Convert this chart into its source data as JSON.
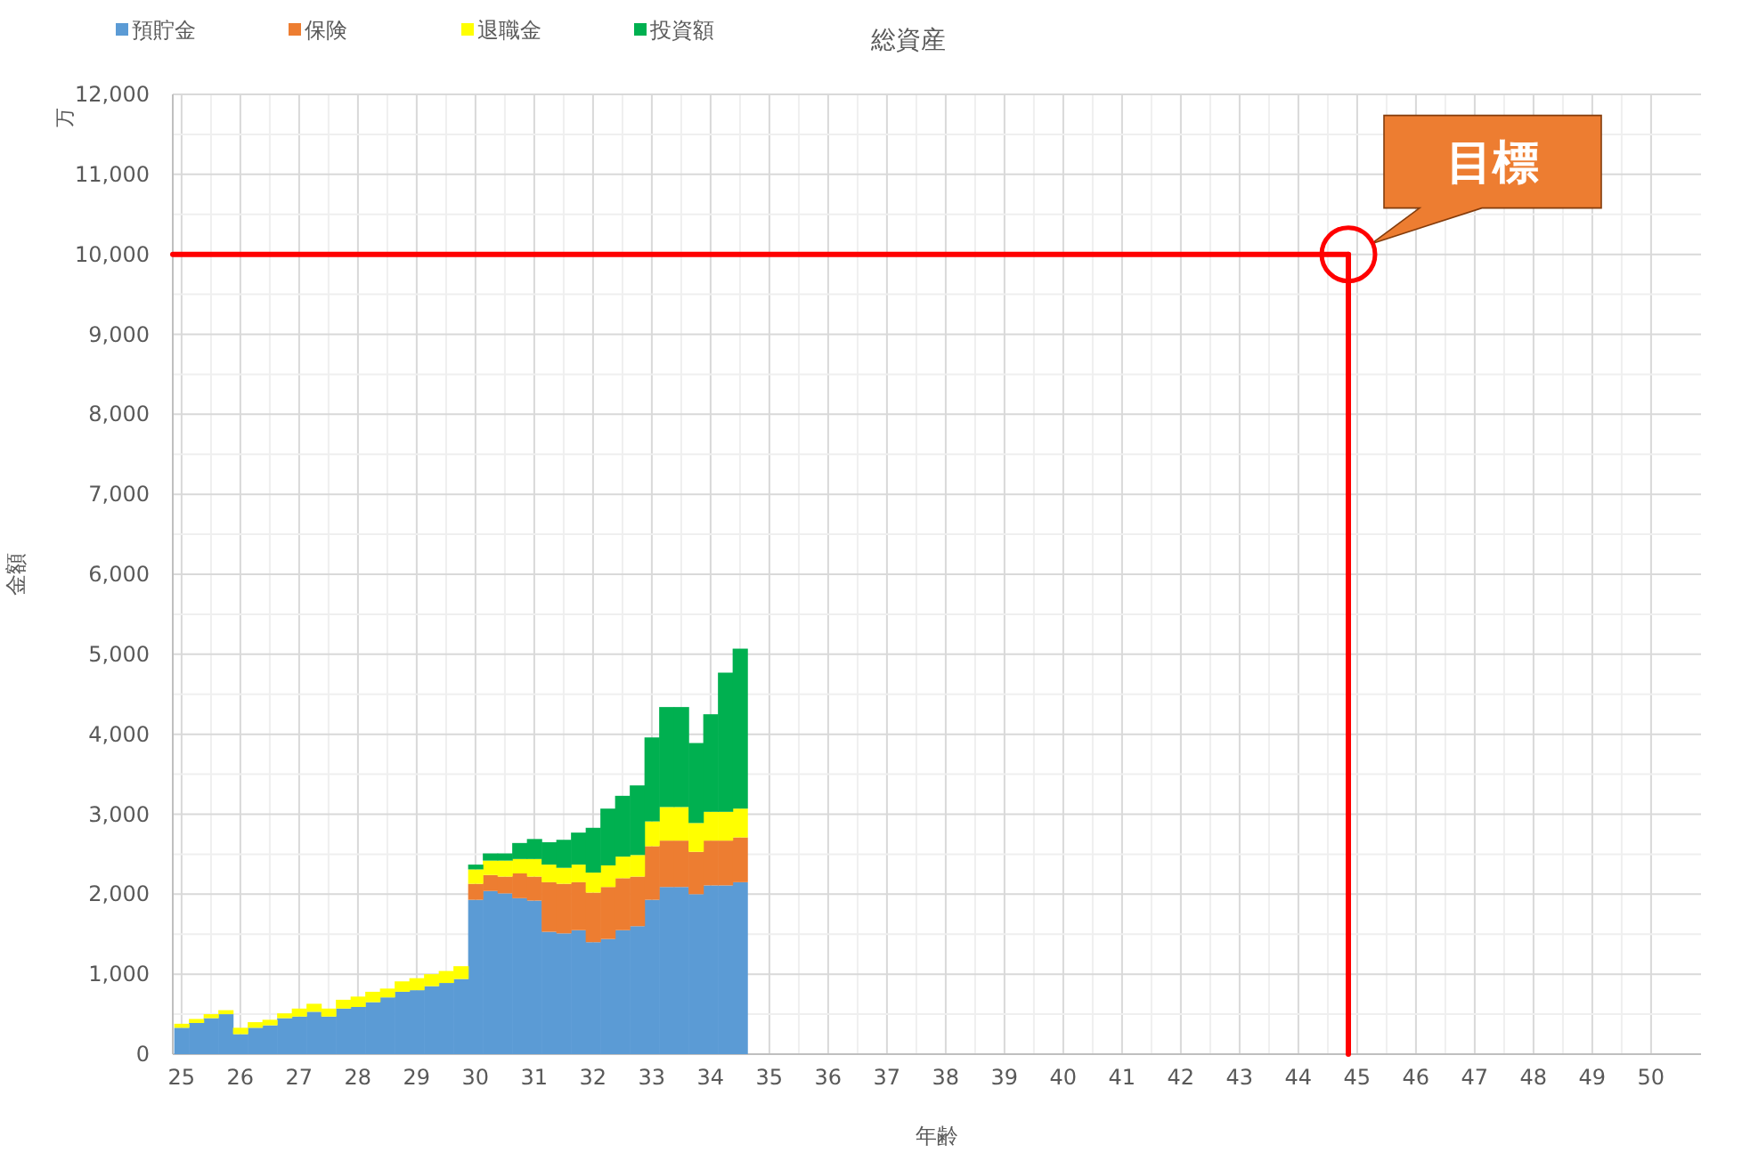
{
  "chart_data": {
    "type": "bar",
    "stacked": true,
    "title": "総資産",
    "xlabel": "年齢",
    "ylabel": "金額",
    "legend": "top left",
    "grid": true,
    "annotations": [
      "万",
      {
        "text": "目標",
        "x": 44.85,
        "y": 10000
      }
    ],
    "x": [
      25,
      25.25,
      25.5,
      25.75,
      26,
      26.25,
      26.5,
      26.75,
      27,
      27.25,
      27.5,
      27.75,
      28,
      28.25,
      28.5,
      28.75,
      29,
      29.25,
      29.5,
      29.75,
      30,
      30.25,
      30.5,
      30.75,
      31,
      31.25,
      31.5,
      31.75,
      32,
      32.25,
      32.5,
      32.75,
      33,
      33.25,
      33.5,
      33.75,
      34,
      34.25,
      34.5
    ],
    "xlim": [
      24.85,
      50.85
    ],
    "xticks": [
      25,
      26,
      27,
      28,
      29,
      30,
      31,
      32,
      33,
      34,
      35,
      36,
      37,
      38,
      39,
      40,
      41,
      42,
      43,
      44,
      45,
      46,
      47,
      48,
      49,
      50
    ],
    "ylim": [
      0,
      12000
    ],
    "yticks": [
      {
        "value": 0,
        "label": "0"
      },
      {
        "value": 1000,
        "label": "1,000"
      },
      {
        "value": 2000,
        "label": "2,000"
      },
      {
        "value": 3000,
        "label": "3,000"
      },
      {
        "value": 4000,
        "label": "4,000"
      },
      {
        "value": 5000,
        "label": "5,000"
      },
      {
        "value": 6000,
        "label": "6,000"
      },
      {
        "value": 7000,
        "label": "7,000"
      },
      {
        "value": 8000,
        "label": "8,000"
      },
      {
        "value": 9000,
        "label": "9,000"
      },
      {
        "value": 10000,
        "label": "10,000"
      },
      {
        "value": 11000,
        "label": "11,000"
      },
      {
        "value": 12000,
        "label": "12,000"
      }
    ],
    "series": [
      {
        "name": "預貯金",
        "color": "#5b9bd5",
        "values": [
          330,
          390,
          450,
          500,
          250,
          330,
          360,
          450,
          470,
          530,
          470,
          570,
          590,
          650,
          710,
          780,
          800,
          850,
          890,
          940,
          1930,
          2040,
          2010,
          1950,
          1920,
          1530,
          1510,
          1550,
          1400,
          1440,
          1550,
          1600,
          1930,
          2090,
          2090,
          2000,
          2110,
          2110,
          2150
        ]
      },
      {
        "name": "保険",
        "color": "#ed7d31",
        "values": [
          0,
          0,
          0,
          0,
          0,
          0,
          0,
          0,
          0,
          0,
          0,
          0,
          0,
          0,
          0,
          0,
          0,
          0,
          0,
          0,
          200,
          200,
          210,
          310,
          300,
          620,
          620,
          600,
          620,
          650,
          650,
          620,
          670,
          580,
          580,
          530,
          560,
          560,
          560
        ]
      },
      {
        "name": "退職金",
        "color": "#ffff00",
        "values": [
          50,
          50,
          50,
          50,
          80,
          70,
          70,
          60,
          100,
          100,
          100,
          110,
          130,
          130,
          110,
          130,
          150,
          150,
          150,
          160,
          180,
          180,
          200,
          180,
          220,
          220,
          200,
          220,
          250,
          270,
          270,
          270,
          310,
          420,
          420,
          360,
          360,
          360,
          360
        ]
      },
      {
        "name": "投資額",
        "color": "#00b050",
        "values": [
          0,
          0,
          0,
          0,
          0,
          0,
          0,
          0,
          0,
          0,
          0,
          0,
          0,
          0,
          0,
          0,
          0,
          0,
          0,
          0,
          60,
          90,
          90,
          200,
          250,
          280,
          350,
          400,
          560,
          710,
          760,
          870,
          1050,
          1250,
          1250,
          1000,
          1220,
          1740,
          2000
        ]
      }
    ],
    "ref_lines": [
      {
        "axis": "y",
        "value": 10000,
        "color": "#ff0000"
      },
      {
        "axis": "x",
        "value": 44.85,
        "color": "#ff0000"
      }
    ]
  }
}
